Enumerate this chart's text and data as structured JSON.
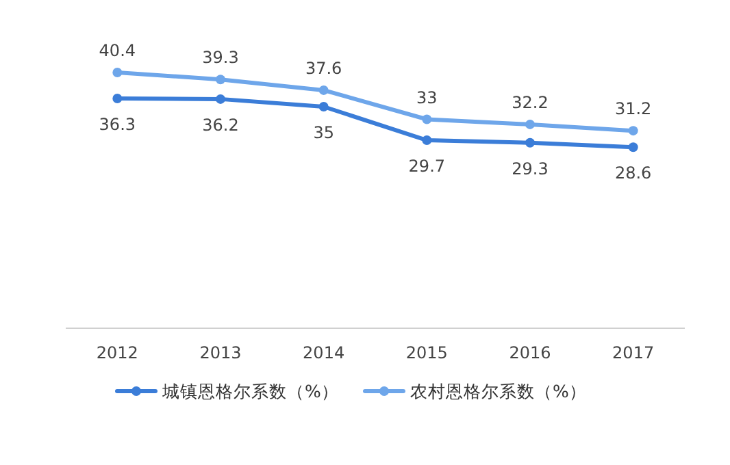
{
  "chart_data": {
    "type": "line",
    "categories": [
      "2012",
      "2013",
      "2014",
      "2015",
      "2016",
      "2017"
    ],
    "series": [
      {
        "name": "城镇恩格尔系数（%）",
        "color": "#3b7dd8",
        "values": [
          36.3,
          36.2,
          35,
          29.7,
          29.3,
          28.6
        ]
      },
      {
        "name": "农村恩格尔系数（%）",
        "color": "#6ea6ea",
        "values": [
          40.4,
          39.3,
          37.6,
          33,
          32.2,
          31.2
        ]
      }
    ],
    "data_labels": true,
    "legend": "bottom",
    "marker": "circle",
    "line_style": "solid",
    "grid": false
  }
}
